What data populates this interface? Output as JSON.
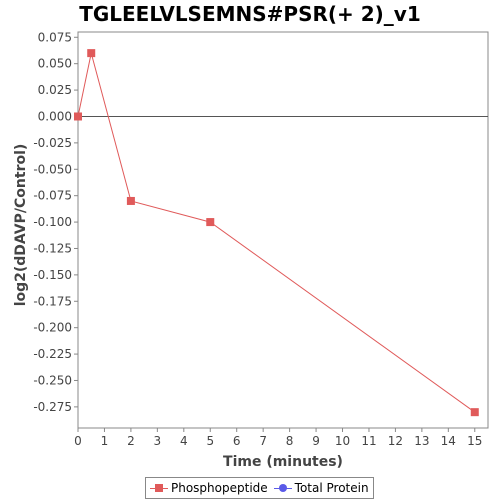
{
  "chart_data": {
    "type": "line",
    "title": "TGLEELVLSEMNS#PSR(+ 2)_v1",
    "xlabel": "Time (minutes)",
    "ylabel": "log2(dDAVP/Control)",
    "xlim": [
      0,
      15.5
    ],
    "ylim": [
      -0.295,
      0.08
    ],
    "xticks": [
      0,
      1,
      2,
      3,
      4,
      5,
      6,
      7,
      8,
      9,
      10,
      11,
      12,
      13,
      14,
      15
    ],
    "xtick_labels": [
      "0",
      "1",
      "2",
      "3",
      "4",
      "5",
      "6",
      "7",
      "8",
      "9",
      "10",
      "11",
      "12",
      "13",
      "14",
      "15"
    ],
    "yticks": [
      0.075,
      0.05,
      0.025,
      0.0,
      -0.025,
      -0.05,
      -0.075,
      -0.1,
      -0.125,
      -0.15,
      -0.175,
      -0.2,
      -0.225,
      -0.25,
      -0.275
    ],
    "ytick_labels": [
      "0.075",
      "0.050",
      "0.025",
      "0.000",
      "-0.025",
      "-0.050",
      "-0.075",
      "-0.100",
      "-0.125",
      "-0.150",
      "-0.175",
      "-0.200",
      "-0.225",
      "-0.250",
      "-0.275"
    ],
    "grid": false,
    "zero_line": true,
    "legend_position": "bottom",
    "series": [
      {
        "name": "Phosphopeptide",
        "color": "#e05a5a",
        "marker": "square",
        "x": [
          0,
          0.5,
          2,
          5,
          15
        ],
        "y": [
          0.0,
          0.06,
          -0.08,
          -0.1,
          -0.28
        ]
      },
      {
        "name": "Total Protein",
        "color": "#5a5ae8",
        "marker": "circle",
        "x": [],
        "y": []
      }
    ]
  }
}
